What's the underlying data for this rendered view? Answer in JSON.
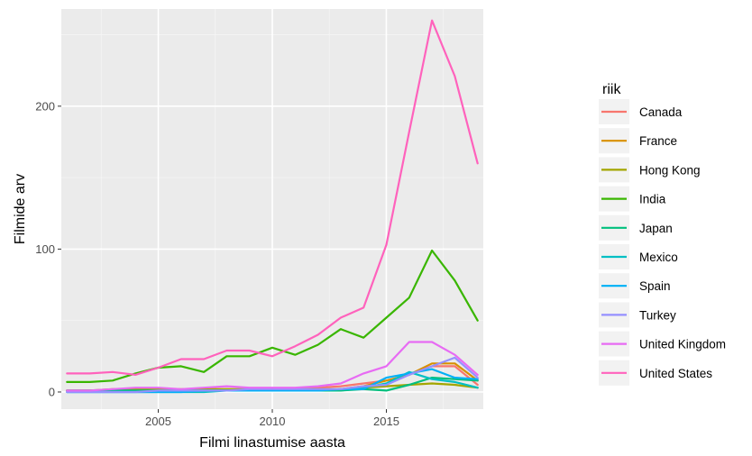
{
  "chart_data": {
    "type": "line",
    "xlabel": "Filmi linastumise aasta",
    "ylabel": "Filmide arv",
    "xlim": [
      2000.75,
      2019.25
    ],
    "ylim": [
      -12,
      268
    ],
    "x_ticks": [
      2005,
      2010,
      2015
    ],
    "y_ticks": [
      0,
      100,
      200
    ],
    "grid": true,
    "legend": {
      "title": "riik",
      "position": "right"
    },
    "x": [
      2001,
      2002,
      2003,
      2004,
      2005,
      2006,
      2007,
      2008,
      2009,
      2010,
      2011,
      2012,
      2013,
      2014,
      2015,
      2016,
      2017,
      2018,
      2019
    ],
    "series": [
      {
        "name": "Canada",
        "color": "#F8766D",
        "values": [
          1,
          1,
          1,
          1,
          1,
          1,
          2,
          2,
          2,
          1,
          2,
          3,
          4,
          6,
          8,
          12,
          18,
          18,
          5
        ]
      },
      {
        "name": "France",
        "color": "#D89000",
        "values": [
          1,
          1,
          1,
          1,
          1,
          1,
          1,
          1,
          1,
          1,
          1,
          1,
          2,
          4,
          8,
          12,
          20,
          20,
          8
        ]
      },
      {
        "name": "Hong Kong",
        "color": "#A3A500",
        "values": [
          1,
          1,
          2,
          2,
          2,
          2,
          2,
          2,
          2,
          2,
          2,
          2,
          2,
          3,
          4,
          5,
          6,
          5,
          3
        ]
      },
      {
        "name": "India",
        "color": "#39B600",
        "values": [
          7,
          7,
          8,
          13,
          17,
          18,
          14,
          25,
          25,
          31,
          26,
          33,
          44,
          38,
          52,
          66,
          99,
          78,
          50
        ]
      },
      {
        "name": "Japan",
        "color": "#00BF7D",
        "values": [
          1,
          1,
          1,
          1,
          1,
          1,
          1,
          1,
          1,
          1,
          1,
          1,
          1,
          2,
          1,
          5,
          10,
          9,
          8
        ]
      },
      {
        "name": "Mexico",
        "color": "#00BFC4",
        "values": [
          0,
          0,
          0,
          0,
          0,
          0,
          0,
          1,
          1,
          1,
          1,
          1,
          2,
          3,
          6,
          14,
          9,
          7,
          3
        ]
      },
      {
        "name": "Spain",
        "color": "#00B0F6",
        "values": [
          0,
          0,
          0,
          0,
          0,
          0,
          1,
          1,
          1,
          1,
          1,
          1,
          2,
          2,
          10,
          13,
          16,
          10,
          9
        ]
      },
      {
        "name": "Turkey",
        "color": "#9590FF",
        "values": [
          0,
          0,
          0,
          0,
          1,
          1,
          1,
          1,
          2,
          2,
          2,
          2,
          2,
          4,
          5,
          12,
          18,
          24,
          10
        ]
      },
      {
        "name": "United Kingdom",
        "color": "#E76BF3",
        "values": [
          1,
          1,
          2,
          3,
          3,
          2,
          3,
          4,
          3,
          3,
          3,
          4,
          6,
          13,
          18,
          35,
          35,
          26,
          12
        ]
      },
      {
        "name": "United States",
        "color": "#FF62BC",
        "values": [
          13,
          13,
          14,
          12,
          17,
          23,
          23,
          29,
          29,
          25,
          32,
          40,
          52,
          59,
          103,
          182,
          260,
          221,
          160
        ]
      }
    ]
  }
}
